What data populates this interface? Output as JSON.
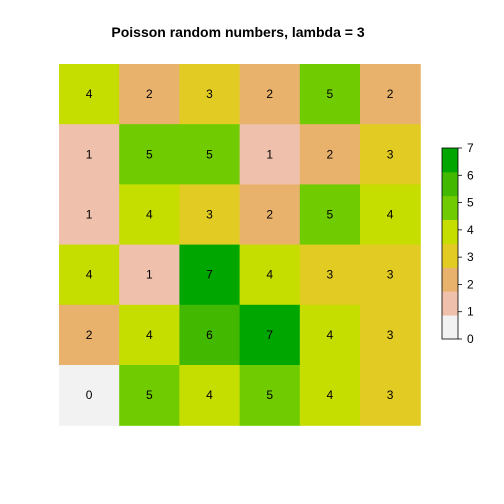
{
  "chart_data": {
    "type": "heatmap",
    "title": "Poisson random numbers, lambda = 3",
    "rows": [
      [
        4,
        2,
        3,
        2,
        5,
        2
      ],
      [
        1,
        5,
        5,
        1,
        2,
        3
      ],
      [
        1,
        4,
        3,
        2,
        5,
        4
      ],
      [
        4,
        1,
        7,
        4,
        3,
        3
      ],
      [
        2,
        4,
        6,
        7,
        4,
        3
      ],
      [
        0,
        5,
        4,
        5,
        4,
        3
      ]
    ],
    "color_scale": {
      "min": 0,
      "max": 7,
      "ticks": [
        0,
        1,
        2,
        3,
        4,
        5,
        6,
        7
      ],
      "colors": {
        "0": "#f2f2f2",
        "1": "#efc0ac",
        "2": "#e9b26c",
        "3": "#e2cc24",
        "4": "#c6dd00",
        "5": "#70cc00",
        "6": "#43b800",
        "7": "#00a600"
      }
    },
    "legend_position": "right"
  }
}
